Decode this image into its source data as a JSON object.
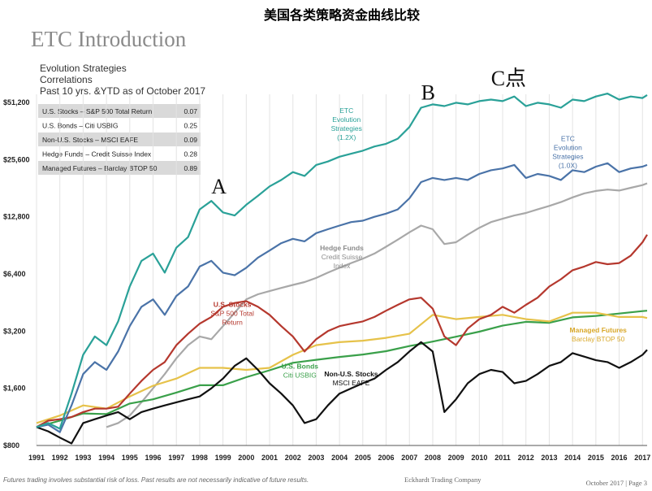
{
  "page_title": "美国各类策略资金曲线比较",
  "section_title": "ETC Introduction",
  "subtitle_lines": [
    "Evolution Strategies",
    "Correlations",
    "Past 10 yrs. &YTD as of October 2017"
  ],
  "correlation_table": [
    {
      "name": "U.S. Stocks – S&P 500 Total Return",
      "value": "0.07"
    },
    {
      "name": "U.S. Bonds – Citi USBIG",
      "value": "0.25"
    },
    {
      "name": "Non-U.S. Stocks – MSCI EAFE",
      "value": "0.09"
    },
    {
      "name": "Hedge Funds – Credit Suisse Index",
      "value": "0.28"
    },
    {
      "name": "Managed Futures – Barclay BTOP 50",
      "value": "0.89"
    }
  ],
  "annotations": [
    {
      "text": "A",
      "x": 1998.5,
      "y": 17000
    },
    {
      "text": "B",
      "x": 2007.5,
      "y": 53000
    },
    {
      "text": "C点",
      "x": 2010.5,
      "y": 63000
    }
  ],
  "footer": {
    "disclaimer": "Futures trading involves substantial risk of loss. Past results are not necessarily indicative of future results.",
    "company": "Eckhardt Trading Company",
    "page": "October 2017 | Page 3"
  },
  "colors": {
    "etc12": "#2aa198",
    "etc10": "#4a73a8",
    "hedge": "#a8a8a8",
    "sp500": "#b5382e",
    "bonds": "#3aa04a",
    "managed": "#e6c24a",
    "eafe": "#111111"
  },
  "chart_data": {
    "type": "line",
    "title": "",
    "xlabel": "",
    "ylabel": "",
    "yscale": "log",
    "xlim": [
      1991,
      2017.2
    ],
    "ylim": [
      800,
      60000
    ],
    "y_ticks": [
      800,
      1600,
      3200,
      6400,
      12800,
      25600,
      51200
    ],
    "y_tick_labels": [
      "$800",
      "$1,600",
      "$3,200",
      "$6,400",
      "$12,800",
      "$25,600",
      "$51,200"
    ],
    "x_ticks": [
      1991,
      1992,
      1993,
      1994,
      1995,
      1996,
      1997,
      1998,
      1999,
      2000,
      2001,
      2002,
      2003,
      2004,
      2005,
      2006,
      2007,
      2008,
      2009,
      2010,
      2011,
      2012,
      2013,
      2014,
      2015,
      2016,
      2017
    ],
    "grid": "vertical",
    "series": [
      {
        "name": "ETC Evolution Strategies (1.2X)",
        "key": "etc12",
        "label_lines": [
          "ETC",
          "Evolution",
          "Strategies",
          "(1.2X)"
        ],
        "label_x": 2004.3,
        "label_y": 45000,
        "x": [
          1991,
          1991.5,
          1992,
          1992.5,
          1993,
          1993.5,
          1994,
          1994.5,
          1995,
          1995.5,
          1996,
          1996.5,
          1997,
          1997.5,
          1998,
          1998.5,
          1999,
          1999.5,
          2000,
          2000.5,
          2001,
          2001.5,
          2002,
          2002.5,
          2003,
          2003.5,
          2004,
          2004.5,
          2005,
          2005.5,
          2006,
          2006.5,
          2007,
          2007.5,
          2008,
          2008.5,
          2009,
          2009.5,
          2010,
          2010.5,
          2011,
          2011.5,
          2012,
          2012.5,
          2013,
          2013.5,
          2014,
          2014.5,
          2015,
          2015.5,
          2016,
          2016.5,
          2017,
          2017.2
        ],
        "y": [
          1000,
          1050,
          980,
          1500,
          2400,
          3000,
          2700,
          3600,
          5500,
          7500,
          8200,
          6500,
          8800,
          10000,
          14000,
          15500,
          13500,
          13000,
          14800,
          16500,
          18500,
          20000,
          22000,
          21000,
          24000,
          25000,
          26500,
          27500,
          28500,
          30000,
          31000,
          33000,
          38000,
          48000,
          50000,
          49000,
          51000,
          50000,
          52000,
          53000,
          52000,
          55000,
          49000,
          51000,
          50000,
          48000,
          53000,
          52000,
          55000,
          57000,
          53000,
          55000,
          54000,
          56000
        ]
      },
      {
        "name": "ETC Evolution Strategies (1.0X)",
        "key": "etc10",
        "label_lines": [
          "ETC",
          "Evolution",
          "Strategies",
          "(1.0X)"
        ],
        "label_x": 2013.8,
        "label_y": 32000,
        "x": [
          1991,
          1991.5,
          1992,
          1992.5,
          1993,
          1993.5,
          1994,
          1994.5,
          1995,
          1995.5,
          1996,
          1996.5,
          1997,
          1997.5,
          1998,
          1998.5,
          1999,
          1999.5,
          2000,
          2000.5,
          2001,
          2001.5,
          2002,
          2002.5,
          2003,
          2003.5,
          2004,
          2004.5,
          2005,
          2005.5,
          2006,
          2006.5,
          2007,
          2007.5,
          2008,
          2008.5,
          2009,
          2009.5,
          2010,
          2010.5,
          2011,
          2011.5,
          2012,
          2012.5,
          2013,
          2013.5,
          2014,
          2014.5,
          2015,
          2015.5,
          2016,
          2016.5,
          2017,
          2017.2
        ],
        "y": [
          1000,
          1030,
          940,
          1300,
          1900,
          2200,
          2000,
          2500,
          3400,
          4300,
          4700,
          3900,
          4900,
          5500,
          7000,
          7500,
          6500,
          6300,
          6900,
          7800,
          8500,
          9300,
          9800,
          9500,
          10500,
          11000,
          11500,
          12000,
          12200,
          12800,
          13300,
          14000,
          16000,
          19500,
          20500,
          20000,
          20500,
          20000,
          21500,
          22500,
          23000,
          24000,
          20500,
          21500,
          21000,
          20000,
          22500,
          22000,
          23500,
          24500,
          22000,
          23000,
          23500,
          24000
        ]
      },
      {
        "name": "Hedge Funds Credit Suisse Index",
        "key": "hedge",
        "label_lines": [
          "Hedge Funds",
          "Credit Suisse",
          "Index"
        ],
        "label_x": 2004.1,
        "label_y": 8500,
        "label_bold_first": true,
        "x": [
          1994,
          1994.5,
          1995,
          1995.5,
          1996,
          1996.5,
          1997,
          1997.5,
          1998,
          1998.5,
          1999,
          1999.5,
          2000,
          2000.5,
          2001,
          2001.5,
          2002,
          2002.5,
          2003,
          2003.5,
          2004,
          2004.5,
          2005,
          2005.5,
          2006,
          2006.5,
          2007,
          2007.5,
          2008,
          2008.5,
          2009,
          2009.5,
          2010,
          2010.5,
          2011,
          2011.5,
          2012,
          2012.5,
          2013,
          2013.5,
          2014,
          2014.5,
          2015,
          2015.5,
          2016,
          2016.5,
          2017,
          2017.2
        ],
        "y": [
          1000,
          1050,
          1150,
          1350,
          1600,
          1900,
          2300,
          2700,
          3000,
          2900,
          3400,
          4000,
          4700,
          5000,
          5200,
          5400,
          5600,
          5800,
          6100,
          6500,
          6900,
          7300,
          7700,
          8200,
          8900,
          9700,
          10600,
          11500,
          11000,
          9200,
          9400,
          10300,
          11200,
          12000,
          12500,
          13000,
          13400,
          14000,
          14600,
          15300,
          16200,
          17000,
          17500,
          17800,
          17600,
          18200,
          18800,
          19200
        ]
      },
      {
        "name": "U.S. Stocks S&P 500 Total Return",
        "key": "sp500",
        "label_lines": [
          "U.S. Stocks",
          "S&P 500 Total",
          "Return"
        ],
        "label_x": 1999.4,
        "label_y": 4300,
        "label_bold_first": true,
        "x": [
          1991,
          1991.5,
          1992,
          1992.5,
          1993,
          1993.5,
          1994,
          1994.5,
          1995,
          1995.5,
          1996,
          1996.5,
          1997,
          1997.5,
          1998,
          1998.5,
          1999,
          1999.5,
          2000,
          2000.5,
          2001,
          2001.5,
          2002,
          2002.5,
          2003,
          2003.5,
          2004,
          2004.5,
          2005,
          2005.5,
          2006,
          2006.5,
          2007,
          2007.5,
          2008,
          2008.5,
          2009,
          2009.5,
          2010,
          2010.5,
          2011,
          2011.5,
          2012,
          2012.5,
          2013,
          2013.5,
          2014,
          2014.5,
          2015,
          2015.5,
          2016,
          2016.5,
          2017,
          2017.2
        ],
        "y": [
          1000,
          1080,
          1100,
          1130,
          1200,
          1250,
          1250,
          1280,
          1500,
          1750,
          2000,
          2200,
          2700,
          3100,
          3500,
          3800,
          4300,
          4500,
          4600,
          4300,
          3900,
          3400,
          3000,
          2500,
          2900,
          3200,
          3400,
          3500,
          3600,
          3800,
          4100,
          4400,
          4700,
          4800,
          4200,
          3000,
          2700,
          3300,
          3700,
          3900,
          4300,
          4000,
          4400,
          4800,
          5500,
          6000,
          6700,
          7000,
          7400,
          7200,
          7300,
          8000,
          9400,
          10300
        ]
      },
      {
        "name": "U.S. Bonds Citi USBIG",
        "key": "bonds",
        "label_lines": [
          "U.S. Bonds",
          "Citi USBIG"
        ],
        "label_x": 2002.3,
        "label_y": 2030,
        "label_bold_first": true,
        "x": [
          1991,
          1992,
          1993,
          1994,
          1995,
          1996,
          1997,
          1998,
          1999,
          2000,
          2001,
          2002,
          2003,
          2004,
          2005,
          2006,
          2007,
          2008,
          2009,
          2010,
          2011,
          2012,
          2013,
          2014,
          2015,
          2016,
          2017,
          2017.2
        ],
        "y": [
          1000,
          1080,
          1180,
          1170,
          1330,
          1400,
          1520,
          1660,
          1660,
          1830,
          1990,
          2180,
          2260,
          2340,
          2410,
          2510,
          2670,
          2820,
          2990,
          3180,
          3420,
          3580,
          3540,
          3780,
          3850,
          3960,
          4080,
          4100
        ]
      },
      {
        "name": "Managed Futures Barclay BTOP 50",
        "key": "managed",
        "label_lines": [
          "Managed Futures",
          "Barclay BTOP 50"
        ],
        "label_x": 2015.1,
        "label_y": 3150,
        "label_bold_first": true,
        "x": [
          1991,
          1992,
          1993,
          1994,
          1995,
          1996,
          1997,
          1998,
          1999,
          2000,
          2001,
          2002,
          2003,
          2004,
          2005,
          2006,
          2007,
          2008,
          2009,
          2010,
          2011,
          2012,
          2013,
          2014,
          2015,
          2016,
          2017,
          2017.2
        ],
        "y": [
          1050,
          1150,
          1300,
          1250,
          1450,
          1650,
          1800,
          2050,
          2050,
          2000,
          2050,
          2400,
          2700,
          2800,
          2850,
          2950,
          3100,
          3900,
          3700,
          3800,
          3900,
          3700,
          3600,
          4000,
          4000,
          3800,
          3800,
          3750
        ]
      },
      {
        "name": "Non-U.S. Stocks MSCI EAFE",
        "key": "eafe",
        "label_lines": [
          "Non-U.S. Stocks",
          "MSCI EAFE"
        ],
        "label_x": 2004.5,
        "label_y": 1850,
        "label_bold_first": true,
        "x": [
          1991,
          1991.5,
          1992,
          1992.5,
          1993,
          1993.5,
          1994,
          1994.5,
          1995,
          1995.5,
          1996,
          1996.5,
          1997,
          1997.5,
          1998,
          1998.5,
          1999,
          1999.5,
          2000,
          2000.5,
          2001,
          2001.5,
          2002,
          2002.5,
          2003,
          2003.5,
          2004,
          2004.5,
          2005,
          2005.5,
          2006,
          2006.5,
          2007,
          2007.5,
          2008,
          2008.5,
          2009,
          2009.5,
          2010,
          2010.5,
          2011,
          2011.5,
          2012,
          2012.5,
          2013,
          2013.5,
          2014,
          2014.5,
          2015,
          2015.5,
          2016,
          2016.5,
          2017,
          2017.2
        ],
        "y": [
          1000,
          950,
          880,
          820,
          1050,
          1100,
          1150,
          1200,
          1100,
          1200,
          1250,
          1300,
          1350,
          1400,
          1450,
          1600,
          1800,
          2100,
          2300,
          2000,
          1700,
          1500,
          1300,
          1050,
          1100,
          1300,
          1500,
          1600,
          1700,
          1800,
          2000,
          2200,
          2500,
          2800,
          2500,
          1200,
          1400,
          1700,
          1900,
          2000,
          1950,
          1700,
          1750,
          1900,
          2100,
          2200,
          2450,
          2350,
          2250,
          2200,
          2050,
          2200,
          2400,
          2550
        ]
      }
    ]
  }
}
